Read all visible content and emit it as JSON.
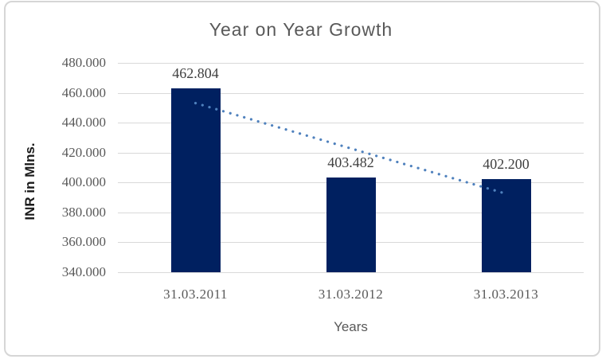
{
  "chart_data": {
    "type": "bar",
    "title": "Year on Year Growth",
    "xlabel": "Years",
    "ylabel": "INR in Mlns.",
    "categories": [
      "31.03.2011",
      "31.03.2012",
      "31.03.2013"
    ],
    "values": [
      462.804,
      403.482,
      402.2
    ],
    "data_labels": [
      "462.804",
      "403.482",
      "402.200"
    ],
    "y_ticks": [
      {
        "label": "480.000",
        "value": 480
      },
      {
        "label": "460.000",
        "value": 460
      },
      {
        "label": "440.000",
        "value": 440
      },
      {
        "label": "420.000",
        "value": 420
      },
      {
        "label": "400.000",
        "value": 400
      },
      {
        "label": "380.000",
        "value": 380
      },
      {
        "label": "360.000",
        "value": 360
      },
      {
        "label": "340.000",
        "value": 340
      }
    ],
    "ylim": [
      340,
      480
    ],
    "grid": true,
    "legend": "none",
    "bar_color": "#002060",
    "gridline_color": "#D9D9D9",
    "axis_text_color": "#595959",
    "data_label_color": "#3F3F3F",
    "trendline": {
      "type": "linear",
      "style": "dotted",
      "color": "#4F81BD",
      "start_category_index": 0,
      "end_category_index": 2,
      "start_value": 453.1,
      "end_value": 392.5
    }
  }
}
